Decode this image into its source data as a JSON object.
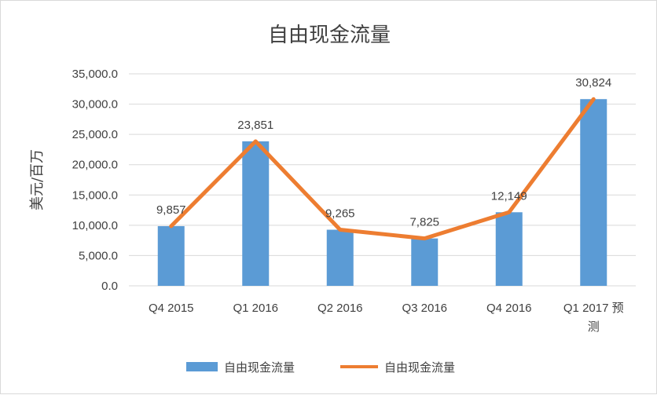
{
  "chart_data": {
    "type": "bar",
    "title": "自由现金流量",
    "ylabel": "美元/百万",
    "xlabel": "",
    "categories": [
      [
        "Q4 2015"
      ],
      [
        "Q1 2016"
      ],
      [
        "Q2 2016"
      ],
      [
        "Q3 2016"
      ],
      [
        "Q4 2016"
      ],
      [
        "Q1 2017 预",
        "测"
      ]
    ],
    "series": [
      {
        "name": "自由现金流量",
        "kind": "bar",
        "color": "#5b9bd5",
        "values": [
          9857,
          23851,
          9265,
          7825,
          12149,
          30824
        ]
      },
      {
        "name": "自由现金流量",
        "kind": "line",
        "color": "#ed7d31",
        "values": [
          9857,
          23851,
          9265,
          7825,
          12149,
          30824
        ]
      }
    ],
    "data_labels": [
      "9,857",
      "23,851",
      "9,265",
      "7,825",
      "12,149",
      "30,824"
    ],
    "yticks": [
      "0.0",
      "5,000.0",
      "10,000.0",
      "15,000.0",
      "20,000.0",
      "25,000.0",
      "30,000.0",
      "35,000.0"
    ],
    "ylim": [
      0,
      35000
    ],
    "grid": true,
    "legend_position": "bottom"
  }
}
